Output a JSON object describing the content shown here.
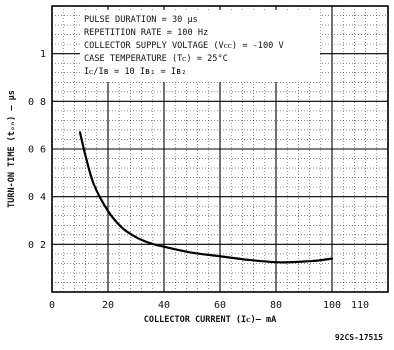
{
  "chart_data": {
    "type": "line",
    "xlabel": "COLLECTOR CURRENT (Iᴄ)— mA",
    "ylabel": "TURN-ON TIME (tₒₙ) — μs",
    "xlim": [
      0,
      120
    ],
    "ylim": [
      0,
      1.2
    ],
    "x_ticks": [
      0,
      20,
      40,
      60,
      80,
      100,
      110
    ],
    "x_tick_labels": [
      "0",
      "20",
      "40",
      "60",
      "80",
      "100",
      "110"
    ],
    "y_ticks": [
      0.2,
      0.4,
      0.6,
      0.8,
      1.0
    ],
    "y_tick_labels": [
      "0 2",
      "0 4",
      "0 6",
      "0 8",
      "1"
    ],
    "grid": true,
    "conditions": [
      "PULSE DURATION = 30 μs",
      "REPETITION RATE = 100 Hz",
      "COLLECTOR SUPPLY VOLTAGE (Vᴄᴄ) = -100 V",
      "CASE TEMPERATURE (Tᴄ) = 25°C",
      "Iᴄ/Iʙ = 10 Iʙ₁ = Iʙ₂"
    ],
    "series": [
      {
        "x": [
          10,
          12,
          15,
          20,
          25,
          30,
          35,
          40,
          50,
          60,
          70,
          80,
          85,
          90,
          95,
          100
        ],
        "y": [
          0.67,
          0.57,
          0.45,
          0.34,
          0.27,
          0.23,
          0.205,
          0.19,
          0.165,
          0.15,
          0.135,
          0.125,
          0.125,
          0.128,
          0.132,
          0.14
        ]
      }
    ],
    "figure_id": "92CS-17515"
  }
}
